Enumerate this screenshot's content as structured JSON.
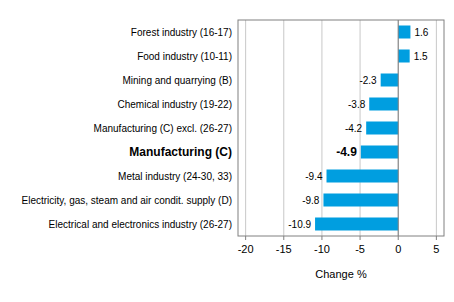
{
  "chart_data": {
    "type": "bar",
    "orientation": "horizontal",
    "x_label": "Change %",
    "categories": [
      "Forest industry (16-17)",
      "Food industry (10-11)",
      "Mining and quarrying (B)",
      "Chemical industry (19-22)",
      "Manufacturing (C) excl. (26-27)",
      "Manufacturing (C)",
      "Metal industry (24-30, 33)",
      "Electricity, gas, steam and air condit. supply (D)",
      "Electrical and electronics industry (26-27)"
    ],
    "values": [
      1.6,
      1.5,
      -2.3,
      -3.8,
      -4.2,
      -4.9,
      -9.4,
      -9.8,
      -10.9
    ],
    "color": "#009ee0",
    "xlim": [
      -21,
      6
    ],
    "xticks": [
      -20,
      -15,
      -10,
      -5,
      0,
      5
    ],
    "grid": true,
    "data_labels": true
  }
}
